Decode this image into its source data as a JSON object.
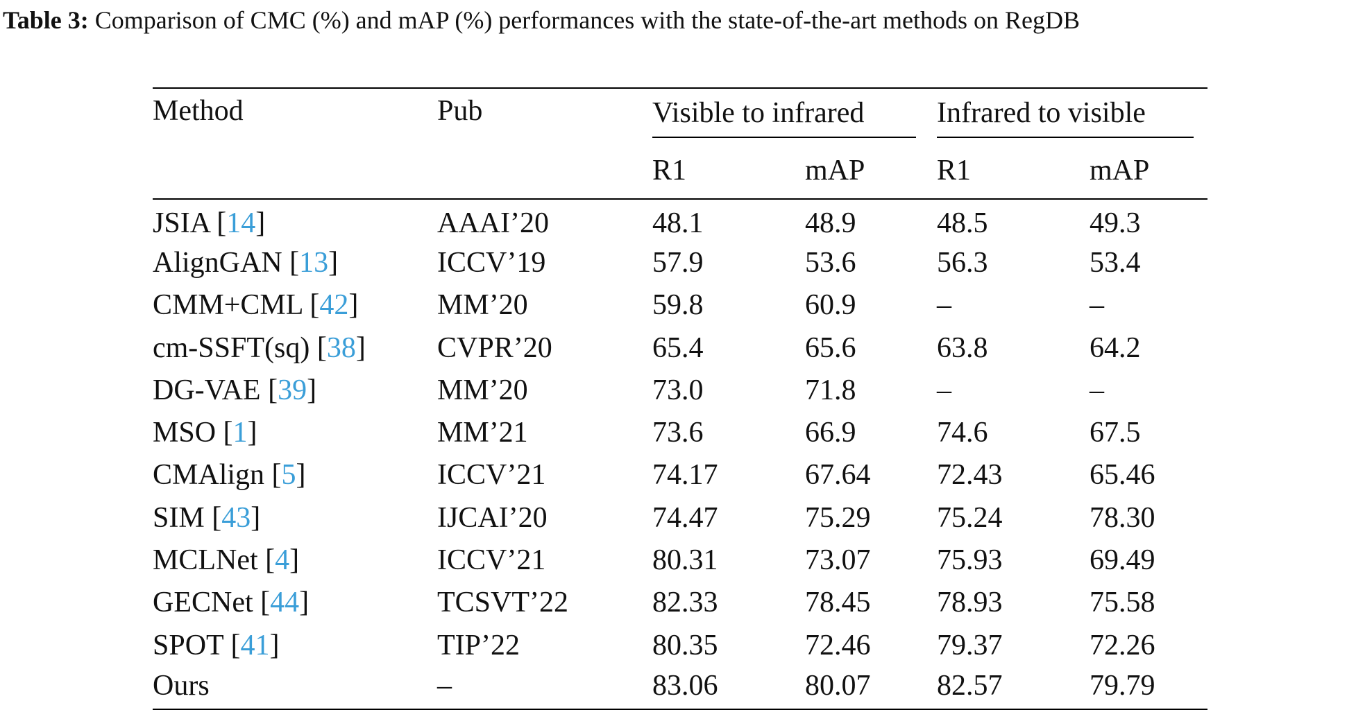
{
  "caption": {
    "label": "Table 3:",
    "text": " Comparison of CMC (%) and mAP (%) performances with the state-of-the-art methods on RegDB"
  },
  "table": {
    "headers": {
      "method": "Method",
      "pub": "Pub",
      "group_v2i": "Visible to infrared",
      "group_i2v": "Infrared to visible",
      "r1": "R1",
      "map": "mAP"
    },
    "rows": [
      {
        "name": "JSIA",
        "cite": "14",
        "pub": "AAAI’20",
        "v_r1": "48.1",
        "v_map": "48.9",
        "i_r1": "48.5",
        "i_map": "49.3"
      },
      {
        "name": "AlignGAN",
        "cite": "13",
        "pub": "ICCV’19",
        "v_r1": "57.9",
        "v_map": "53.6",
        "i_r1": "56.3",
        "i_map": "53.4"
      },
      {
        "name": "CMM+CML",
        "cite": "42",
        "pub": "MM’20",
        "v_r1": "59.8",
        "v_map": "60.9",
        "i_r1": "–",
        "i_map": "–"
      },
      {
        "name": "cm-SSFT(sq)",
        "cite": "38",
        "pub": "CVPR’20",
        "v_r1": "65.4",
        "v_map": "65.6",
        "i_r1": "63.8",
        "i_map": "64.2"
      },
      {
        "name": "DG-VAE",
        "cite": "39",
        "pub": "MM’20",
        "v_r1": "73.0",
        "v_map": "71.8",
        "i_r1": "–",
        "i_map": "–"
      },
      {
        "name": "MSO",
        "cite": "1",
        "pub": "MM’21",
        "v_r1": "73.6",
        "v_map": "66.9",
        "i_r1": "74.6",
        "i_map": "67.5"
      },
      {
        "name": "CMAlign",
        "cite": "5",
        "pub": "ICCV’21",
        "v_r1": "74.17",
        "v_map": "67.64",
        "i_r1": "72.43",
        "i_map": "65.46"
      },
      {
        "name": "SIM",
        "cite": "43",
        "pub": "IJCAI’20",
        "v_r1": "74.47",
        "v_map": "75.29",
        "i_r1": "75.24",
        "i_map": "78.30"
      },
      {
        "name": "MCLNet",
        "cite": "4",
        "pub": "ICCV’21",
        "v_r1": "80.31",
        "v_map": "73.07",
        "i_r1": "75.93",
        "i_map": "69.49"
      },
      {
        "name": "GECNet",
        "cite": "44",
        "pub": "TCSVT’22",
        "v_r1": "82.33",
        "v_map": "78.45",
        "i_r1": "78.93",
        "i_map": "75.58"
      },
      {
        "name": "SPOT",
        "cite": "41",
        "pub": "TIP’22",
        "v_r1": "80.35",
        "v_map": "72.46",
        "i_r1": "79.37",
        "i_map": "72.26"
      }
    ],
    "ours": {
      "name": "Ours",
      "pub": "–",
      "v_r1": "83.06",
      "v_map": "80.07",
      "i_r1": "82.57",
      "i_map": "79.79"
    }
  },
  "colors": {
    "citation": "#3a9ed8",
    "text": "#111111"
  }
}
